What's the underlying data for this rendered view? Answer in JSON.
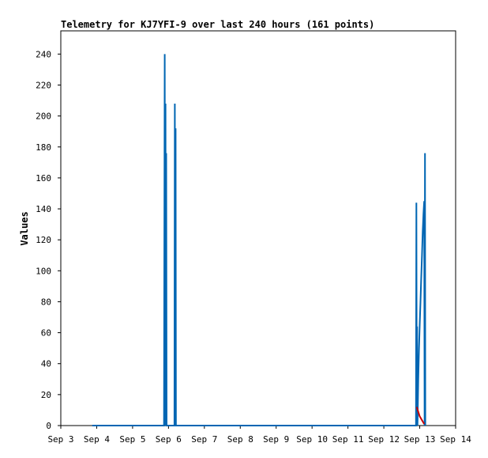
{
  "chart_data": {
    "type": "line",
    "title": "Telemetry for KJ7YFI-9 over last 240 hours (161 points)",
    "xlabel": "",
    "ylabel": "Values",
    "ylim": [
      0,
      255
    ],
    "xlim": [
      "Sep 3",
      "Sep 14"
    ],
    "x_ticks": [
      "Sep 3",
      "Sep 4",
      "Sep 5",
      "Sep 6",
      "Sep 7",
      "Sep 8",
      "Sep 9",
      "Sep 10",
      "Sep 11",
      "Sep 12",
      "Sep 13",
      "Sep 14"
    ],
    "y_ticks": [
      0,
      20,
      40,
      60,
      80,
      100,
      120,
      140,
      160,
      180,
      200,
      220,
      240
    ],
    "grid": false,
    "legend": "none",
    "series": [
      {
        "color": "#0066b3",
        "points": [
          [
            "Sep 3 21:00",
            0
          ],
          [
            "Sep 5 21:00",
            0
          ],
          [
            "Sep 5 21:30",
            240
          ],
          [
            "Sep 5 21:45",
            0
          ],
          [
            "Sep 5 22:00",
            208
          ],
          [
            "Sep 5 22:15",
            0
          ],
          [
            "Sep 5 22:30",
            176
          ],
          [
            "Sep 5 22:45",
            0
          ],
          [
            "Sep 6 04:00",
            0
          ],
          [
            "Sep 6 04:15",
            208
          ],
          [
            "Sep 6 04:30",
            0
          ],
          [
            "Sep 6 04:45",
            192
          ],
          [
            "Sep 6 05:00",
            0
          ],
          [
            "Sep 12 21:30",
            0
          ],
          [
            "Sep 12 21:45",
            144
          ],
          [
            "Sep 12 22:00",
            0
          ],
          [
            "Sep 12 22:15",
            64
          ],
          [
            "Sep 12 22:30",
            0
          ],
          [
            "Sep 12 23:00",
            30
          ],
          [
            "Sep 12 23:30",
            50
          ],
          [
            "Sep 13 00:00",
            65
          ],
          [
            "Sep 13 00:30",
            80
          ],
          [
            "Sep 13 01:00",
            95
          ],
          [
            "Sep 13 01:30",
            110
          ],
          [
            "Sep 13 02:00",
            125
          ],
          [
            "Sep 13 02:30",
            137
          ],
          [
            "Sep 13 03:00",
            145
          ],
          [
            "Sep 13 03:15",
            0
          ],
          [
            "Sep 13 03:30",
            176
          ],
          [
            "Sep 13 03:45",
            0
          ]
        ]
      },
      {
        "color": "#cc0000",
        "points": [
          [
            "Sep 12 22:00",
            12
          ],
          [
            "Sep 13 00:00",
            6
          ],
          [
            "Sep 13 03:00",
            1
          ]
        ]
      }
    ]
  }
}
